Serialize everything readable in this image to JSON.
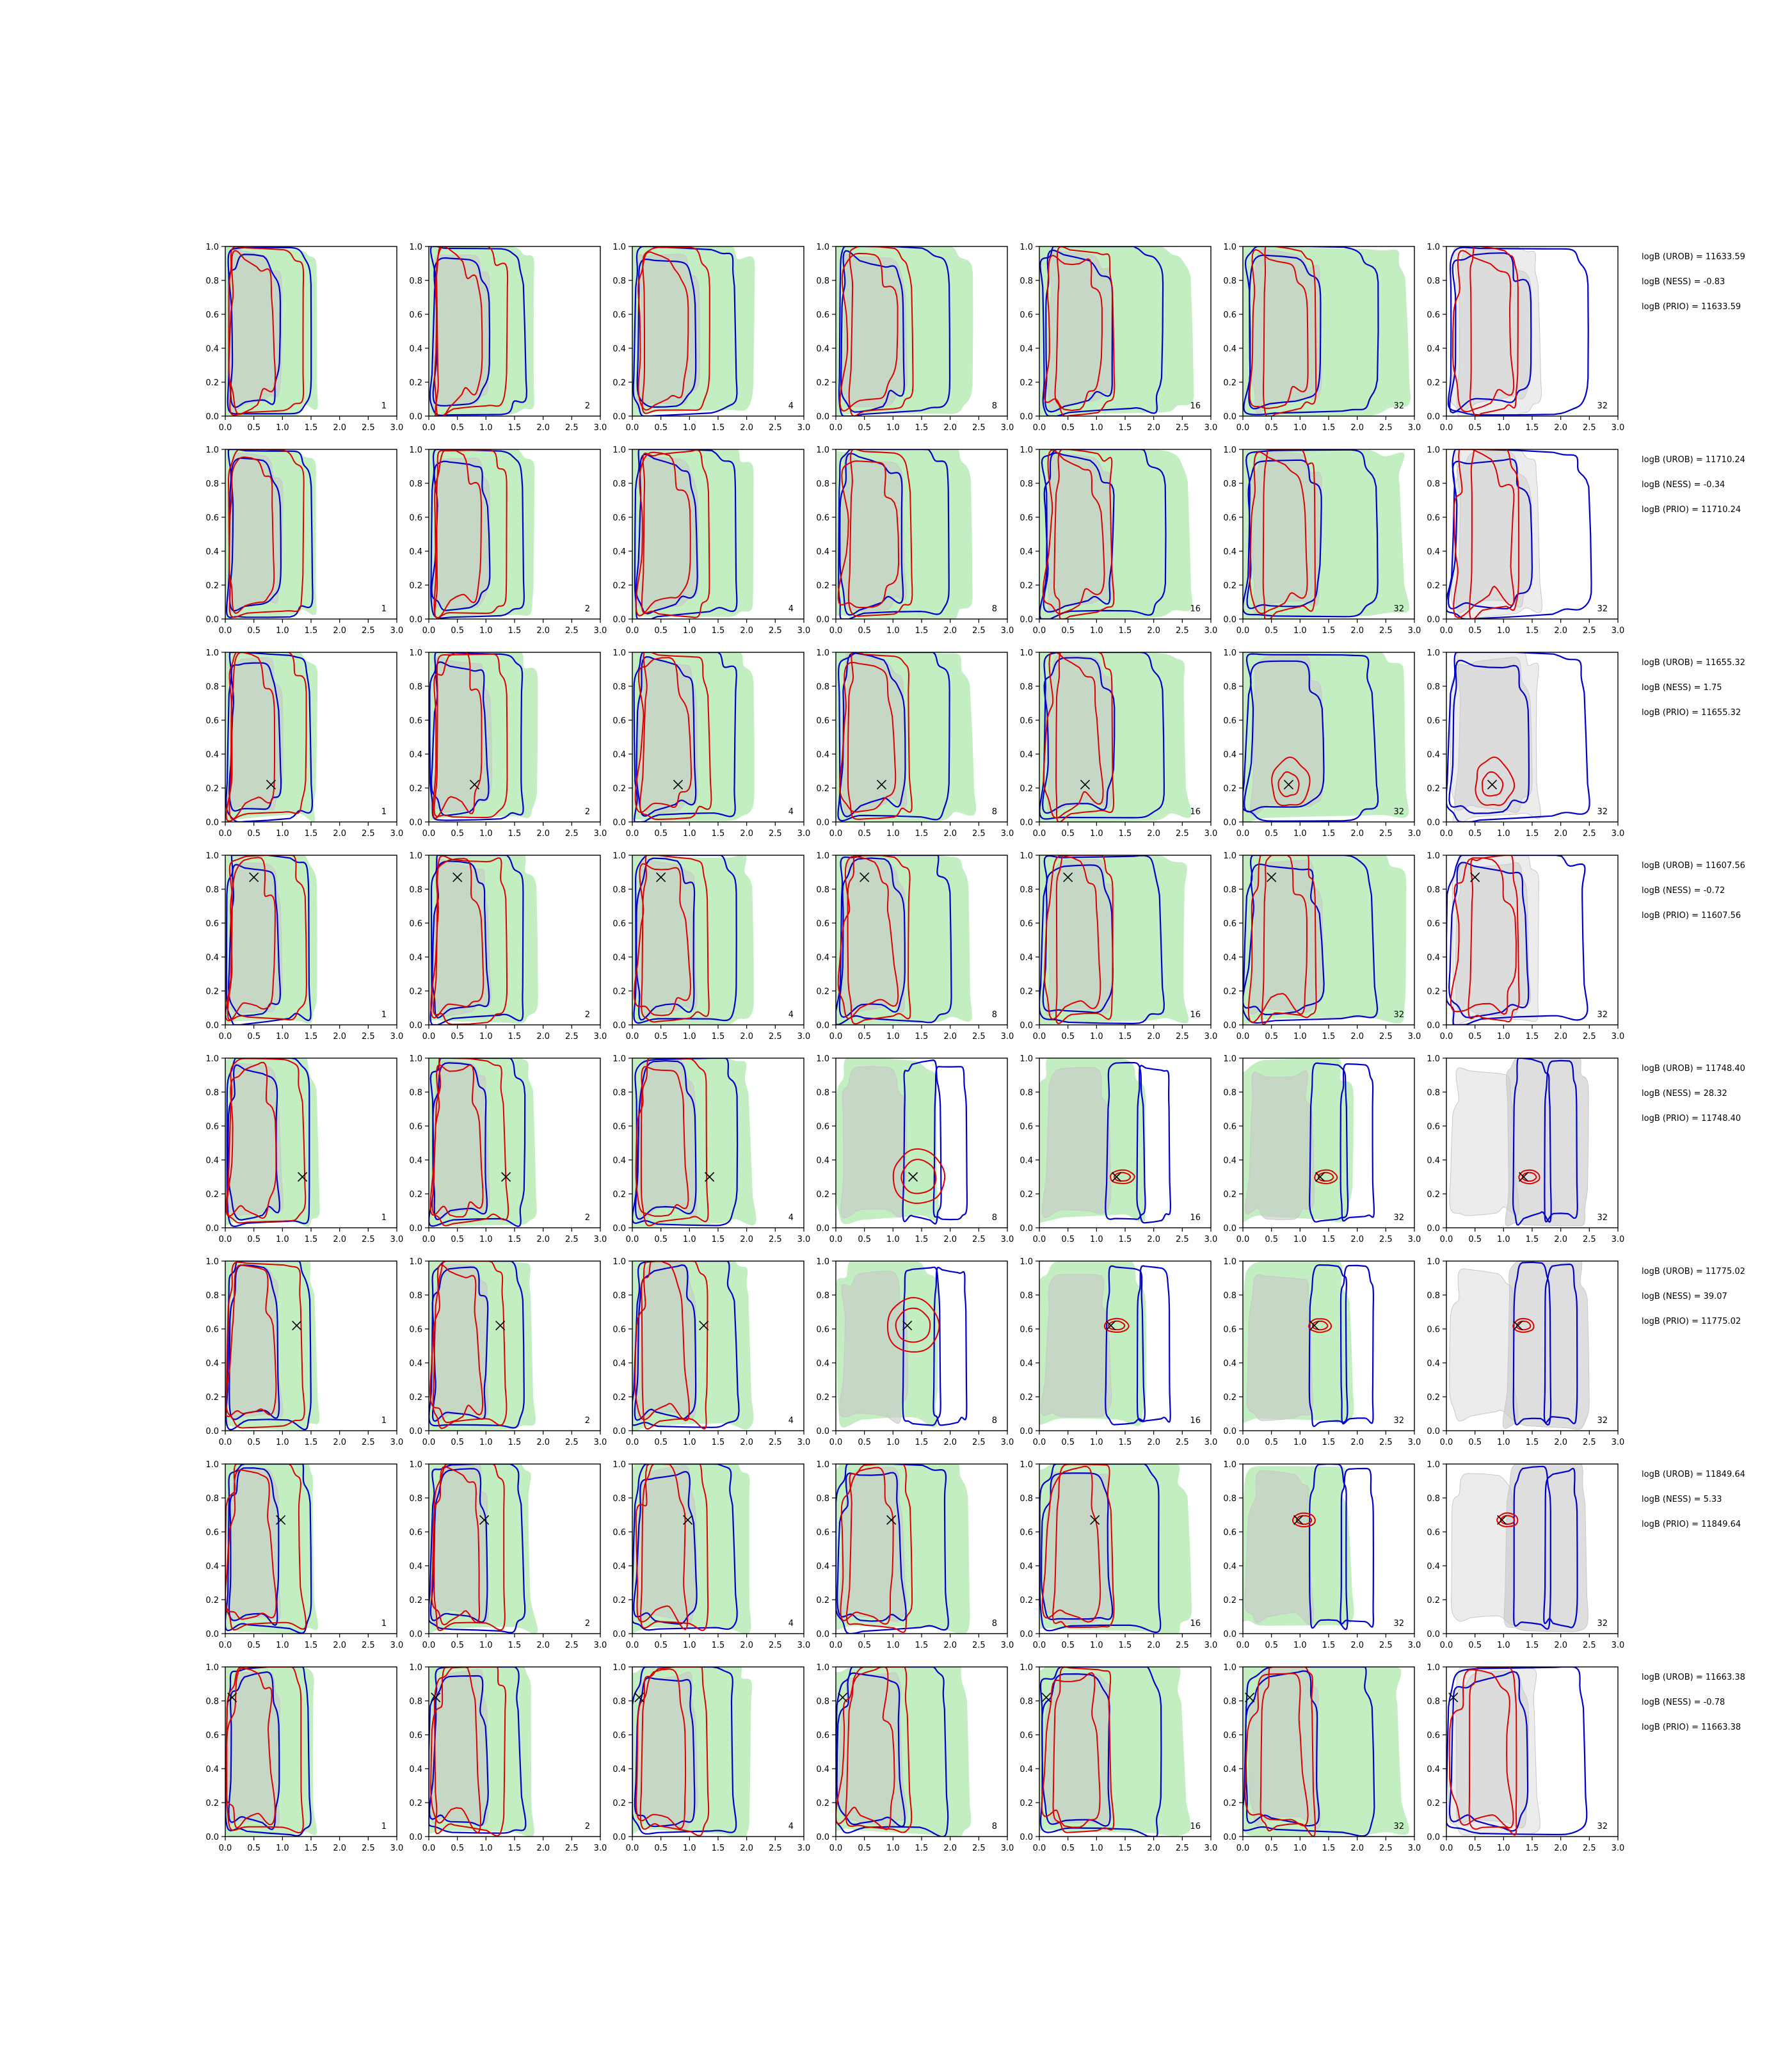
{
  "figure": {
    "n_rows": 8,
    "n_cols": 7,
    "colors": {
      "green_fill": "#90e090",
      "gray_fill": "#c8c8c8",
      "blue_contour": "#0000cc",
      "red_contour": "#dd0000",
      "marker": "#000000"
    }
  },
  "chart_data": {
    "type": "contour-grid",
    "description_free": true,
    "xlim": [
      0.0,
      3.0
    ],
    "ylim": [
      0.0,
      1.0
    ],
    "xticks": [
      "0.0",
      "0.5",
      "1.0",
      "1.5",
      "2.0",
      "2.5",
      "3.0"
    ],
    "yticks": [
      "0.0",
      "0.2",
      "0.4",
      "0.6",
      "0.8",
      "1.0"
    ],
    "column_labels": [
      "1",
      "2",
      "4",
      "8",
      "16",
      "32",
      "32"
    ],
    "rows": [
      {
        "marker": null,
        "mode": "wide",
        "logB_UROB": "logB (UROB) = 11633.59",
        "logB_NESS": "logB (NESS) = -0.83",
        "logB_PRIO": "logB (PRIO) = 11633.59"
      },
      {
        "marker": null,
        "mode": "wide",
        "logB_UROB": "logB (UROB) = 11710.24",
        "logB_NESS": "logB (NESS) = -0.34",
        "logB_PRIO": "logB (PRIO) = 11710.24"
      },
      {
        "marker": [
          0.8,
          0.22
        ],
        "mode": "loop",
        "logB_UROB": "logB (UROB) = 11655.32",
        "logB_NESS": "logB (NESS) = 1.75",
        "logB_PRIO": "logB (PRIO) = 11655.32"
      },
      {
        "marker": [
          0.5,
          0.87
        ],
        "mode": "wide",
        "logB_UROB": "logB (UROB) = 11607.56",
        "logB_NESS": "logB (NESS) = -0.72",
        "logB_PRIO": "logB (PRIO) = 11607.56"
      },
      {
        "marker": [
          1.35,
          0.3
        ],
        "mode": "split",
        "logB_UROB": "logB (UROB) = 11748.40",
        "logB_NESS": "logB (NESS) = 28.32",
        "logB_PRIO": "logB (PRIO) = 11748.40"
      },
      {
        "marker": [
          1.25,
          0.62
        ],
        "mode": "split",
        "logB_UROB": "logB (UROB) = 11775.02",
        "logB_NESS": "logB (NESS) = 39.07",
        "logB_PRIO": "logB (PRIO) = 11775.02"
      },
      {
        "marker": [
          0.97,
          0.67
        ],
        "mode": "splitlate",
        "logB_UROB": "logB (UROB) = 11849.64",
        "logB_NESS": "logB (NESS) = 5.33",
        "logB_PRIO": "logB (PRIO) = 11849.64"
      },
      {
        "marker": [
          0.12,
          0.82
        ],
        "mode": "wide",
        "logB_UROB": "logB (UROB) = 11663.38",
        "logB_NESS": "logB (NESS) = -0.78",
        "logB_PRIO": "logB (PRIO) = 11663.38"
      }
    ]
  }
}
